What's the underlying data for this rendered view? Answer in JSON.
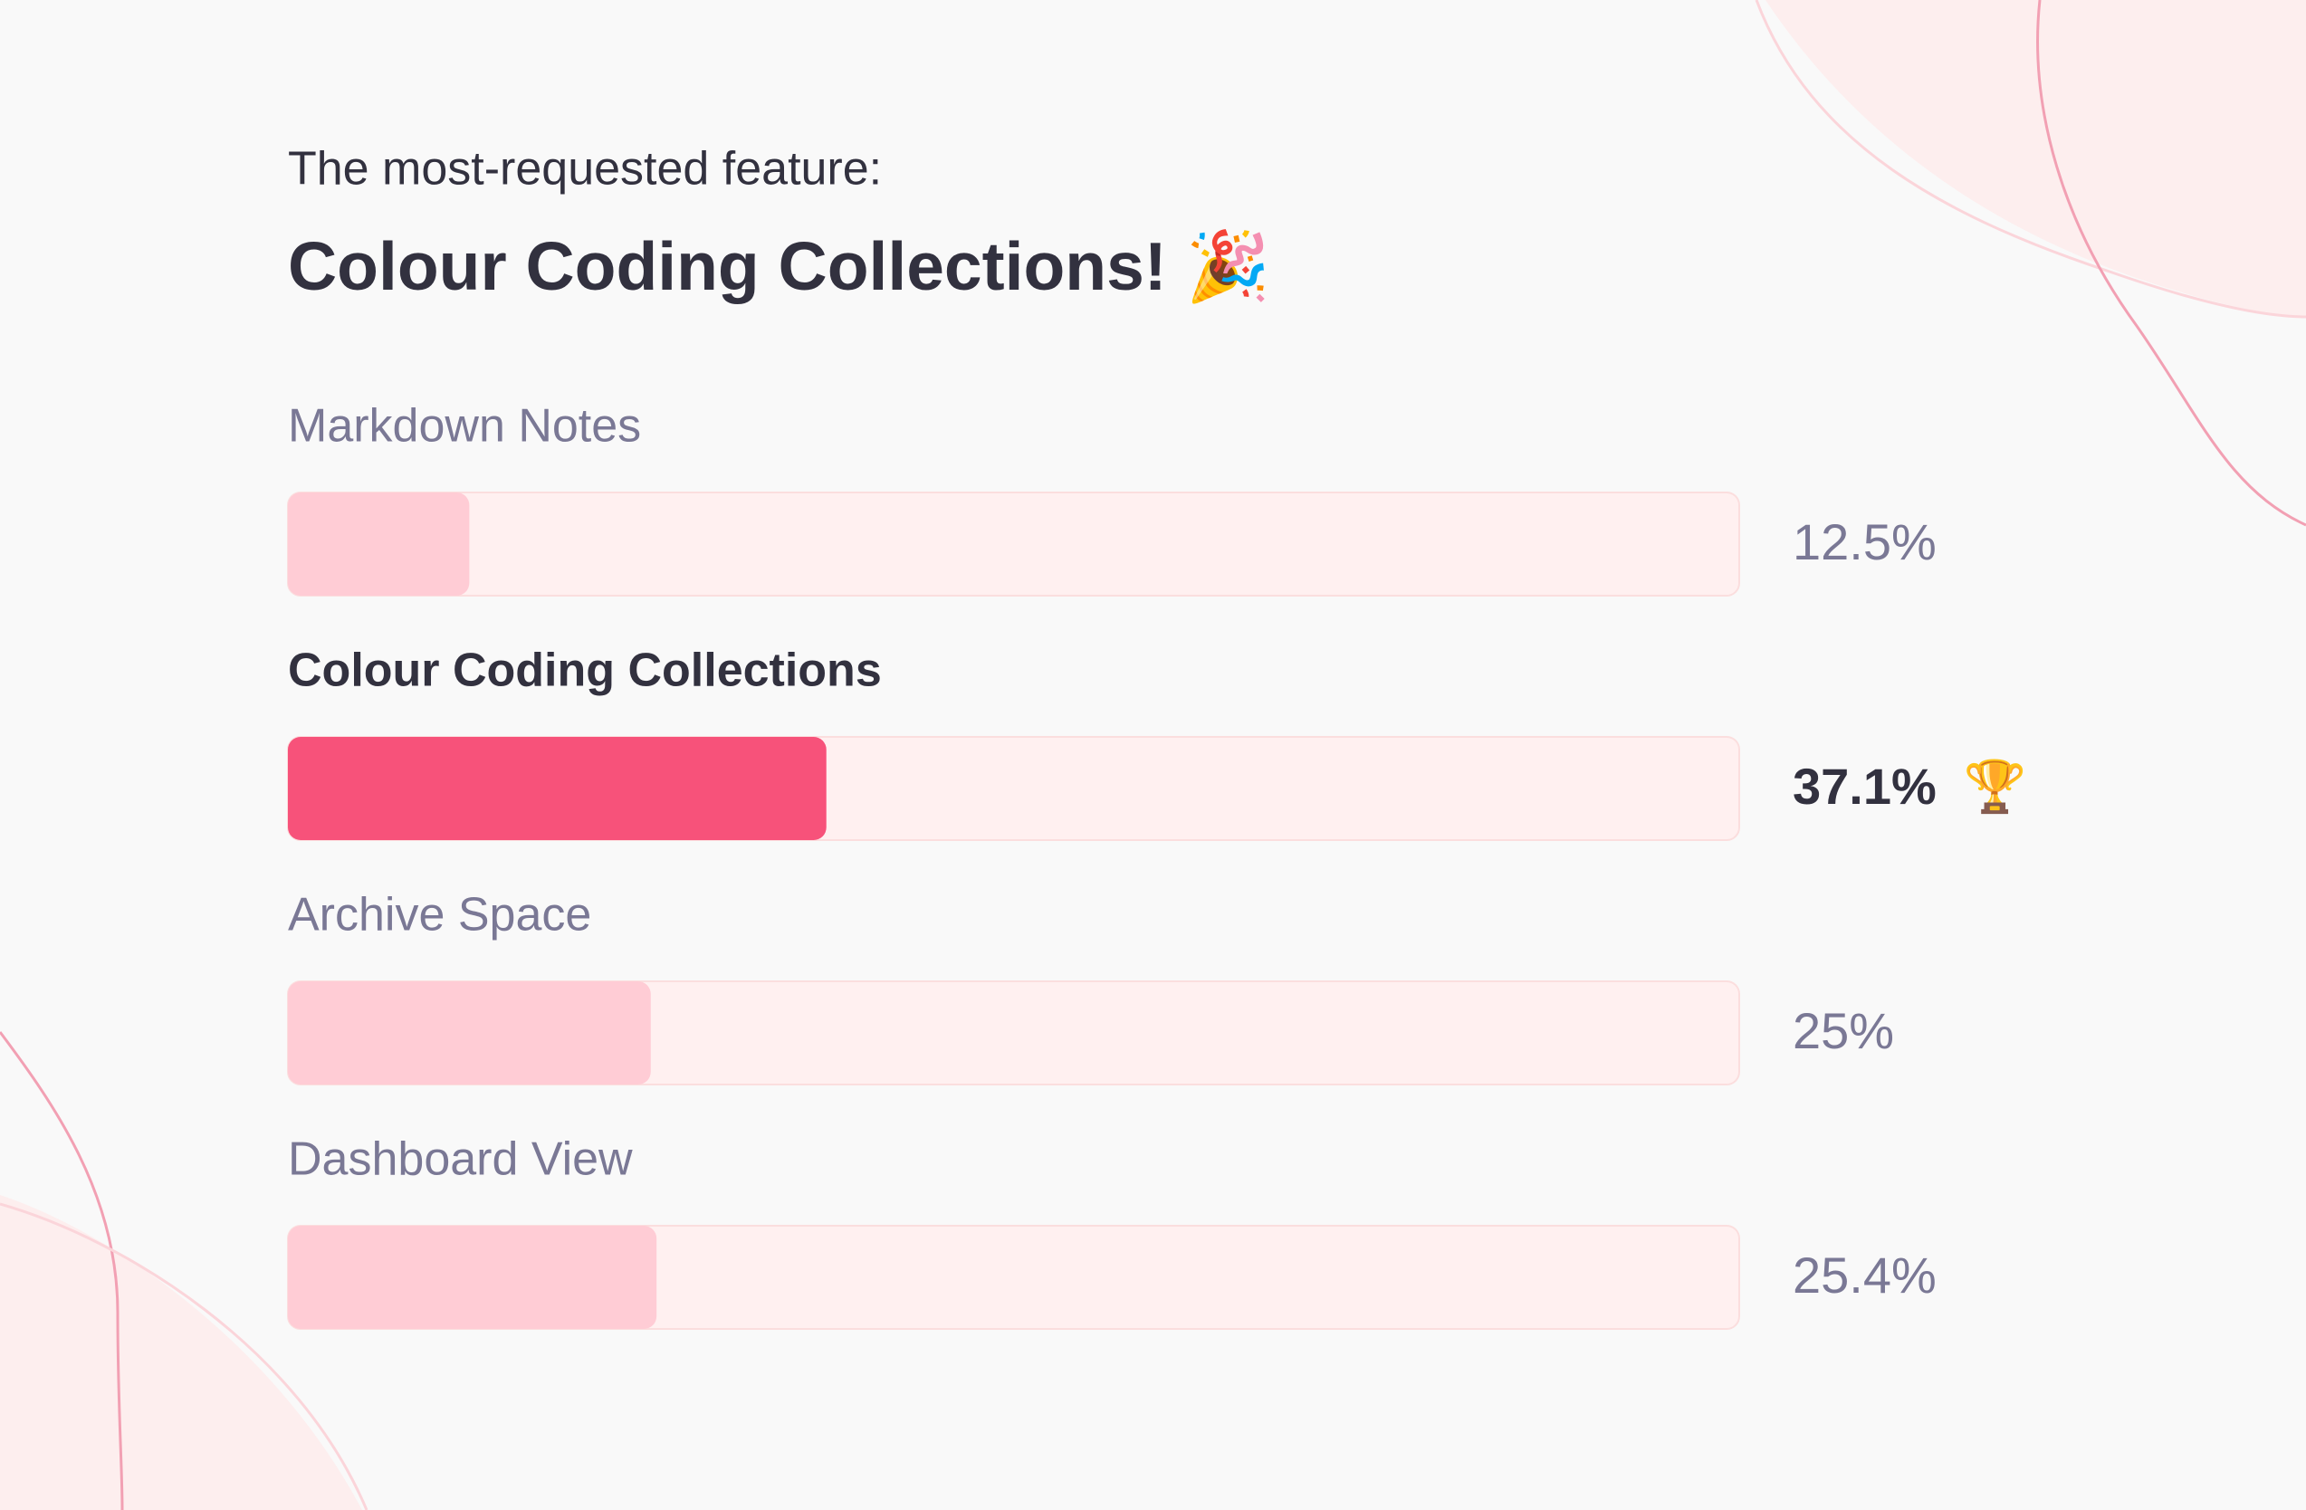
{
  "chart_data": {
    "type": "bar",
    "subtitle": "The most-requested feature:",
    "title": "Colour Coding Collections! 🎉",
    "categories": [
      "Markdown Notes",
      "Colour Coding Collections",
      "Archive Space",
      "Dashboard View"
    ],
    "values": [
      12.5,
      37.1,
      25,
      25.4
    ],
    "value_labels": [
      "12.5%",
      "37.1%",
      "25%",
      "25.4%"
    ],
    "colors": [
      "#ffccd5",
      "#f7527a",
      "#ffccd5",
      "#ffccd5"
    ],
    "highlight_color": "#f7527a",
    "winner_badge": "🏆",
    "xlim": [
      0,
      100
    ]
  }
}
